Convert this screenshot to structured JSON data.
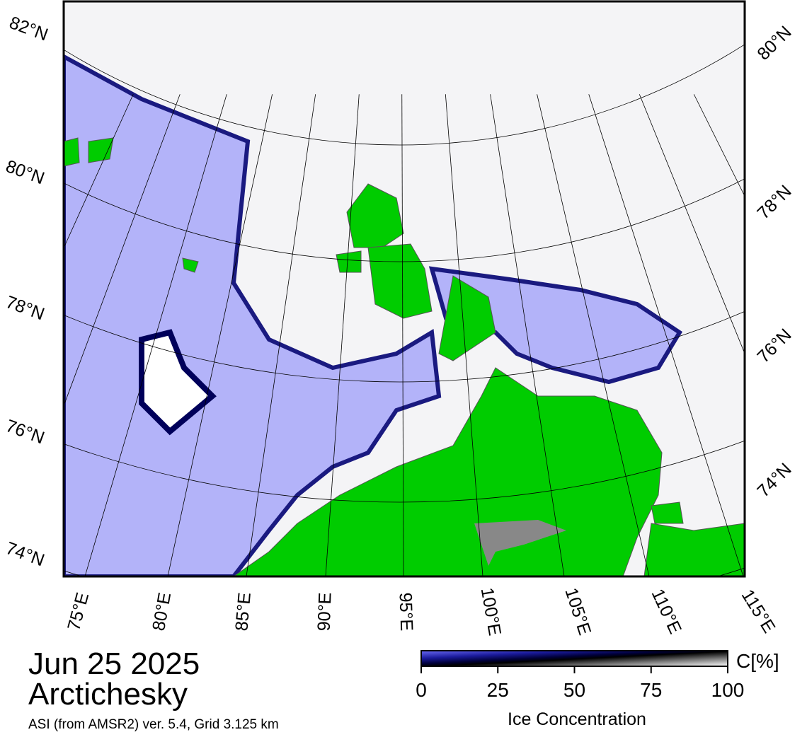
{
  "header": {
    "date": "Jun 25 2025",
    "region": "Arctichesky",
    "source": "ASI (from AMSR2) ver. 5.4,  Grid 3.125 km"
  },
  "map": {
    "lat_labels_left": [
      "82°N",
      "80°N",
      "78°N",
      "76°N",
      "74°N"
    ],
    "lat_labels_right": [
      "80°N",
      "78°N",
      "76°N",
      "74°N"
    ],
    "lon_labels": [
      "75°E",
      "80°E",
      "85°E",
      "90°E",
      "95°E",
      "100°E",
      "105°E",
      "110°E",
      "115°E"
    ]
  },
  "colorbar": {
    "unit": "C[%]",
    "title": "Ice Concentration",
    "range": [
      0,
      100
    ],
    "ticks": [
      0,
      25,
      50,
      75,
      100
    ]
  }
}
